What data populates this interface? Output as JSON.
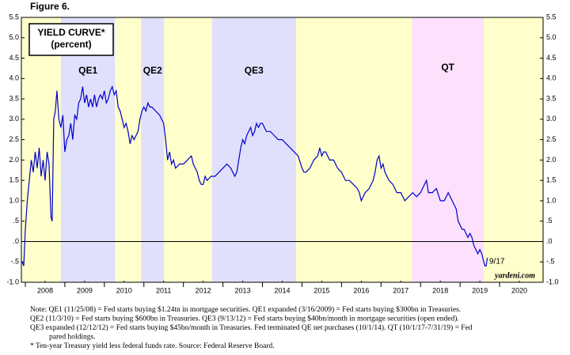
{
  "chart_data": {
    "type": "line",
    "figure_label": "Figure 6.",
    "title": "YIELD CURVE*",
    "subtitle": "(percent)",
    "color": "#0000cc",
    "background": "#ffffcc",
    "regions": [
      {
        "label": "QE1",
        "start": 2008.9,
        "end": 2010.27,
        "color": "#e0e0fc"
      },
      {
        "label": "QE2",
        "start": 2010.93,
        "end": 2011.51,
        "color": "#e0e0fc"
      },
      {
        "label": "QE3",
        "start": 2012.72,
        "end": 2014.85,
        "color": "#e0e0fc"
      },
      {
        "label": "QT",
        "start": 2017.78,
        "end": 2019.6,
        "color": "#fce0fc"
      }
    ],
    "x": [
      2007.92,
      2007.96,
      2008.0,
      2008.05,
      2008.1,
      2008.15,
      2008.2,
      2008.25,
      2008.3,
      2008.35,
      2008.4,
      2008.45,
      2008.5,
      2008.55,
      2008.6,
      2008.65,
      2008.68,
      2008.72,
      2008.76,
      2008.8,
      2008.85,
      2008.9,
      2008.95,
      2009.0,
      2009.05,
      2009.1,
      2009.15,
      2009.2,
      2009.25,
      2009.3,
      2009.35,
      2009.4,
      2009.45,
      2009.5,
      2009.55,
      2009.6,
      2009.65,
      2009.7,
      2009.75,
      2009.8,
      2009.85,
      2009.9,
      2009.95,
      2010.0,
      2010.05,
      2010.1,
      2010.15,
      2010.2,
      2010.25,
      2010.3,
      2010.35,
      2010.4,
      2010.45,
      2010.5,
      2010.55,
      2010.6,
      2010.65,
      2010.7,
      2010.75,
      2010.8,
      2010.85,
      2010.9,
      2010.95,
      2011.0,
      2011.05,
      2011.1,
      2011.15,
      2011.2,
      2011.3,
      2011.4,
      2011.5,
      2011.55,
      2011.6,
      2011.65,
      2011.7,
      2011.75,
      2011.8,
      2011.9,
      2012.0,
      2012.1,
      2012.2,
      2012.25,
      2012.3,
      2012.35,
      2012.4,
      2012.45,
      2012.5,
      2012.55,
      2012.6,
      2012.7,
      2012.8,
      2012.9,
      2013.0,
      2013.1,
      2013.2,
      2013.3,
      2013.35,
      2013.4,
      2013.45,
      2013.5,
      2013.55,
      2013.6,
      2013.65,
      2013.7,
      2013.75,
      2013.8,
      2013.85,
      2013.9,
      2013.95,
      2014.0,
      2014.05,
      2014.1,
      2014.2,
      2014.3,
      2014.4,
      2014.5,
      2014.6,
      2014.7,
      2014.8,
      2014.9,
      2015.0,
      2015.05,
      2015.1,
      2015.2,
      2015.3,
      2015.4,
      2015.45,
      2015.5,
      2015.55,
      2015.6,
      2015.7,
      2015.8,
      2015.9,
      2016.0,
      2016.1,
      2016.2,
      2016.3,
      2016.4,
      2016.45,
      2016.5,
      2016.55,
      2016.6,
      2016.7,
      2016.8,
      2016.85,
      2016.9,
      2016.95,
      2017.0,
      2017.05,
      2017.1,
      2017.2,
      2017.3,
      2017.4,
      2017.5,
      2017.6,
      2017.7,
      2017.8,
      2017.9,
      2018.0,
      2018.05,
      2018.1,
      2018.15,
      2018.2,
      2018.3,
      2018.4,
      2018.5,
      2018.6,
      2018.7,
      2018.8,
      2018.85,
      2018.9,
      2018.95,
      2019.0,
      2019.05,
      2019.1,
      2019.15,
      2019.2,
      2019.25,
      2019.3,
      2019.35,
      2019.4,
      2019.45,
      2019.5,
      2019.55,
      2019.6,
      2019.63,
      2019.66,
      2019.69
    ],
    "values": [
      -0.5,
      -0.6,
      0.3,
      1.0,
      1.5,
      2.0,
      1.7,
      2.2,
      1.8,
      2.3,
      1.6,
      2.0,
      1.5,
      2.2,
      1.9,
      0.6,
      0.5,
      3.0,
      3.2,
      3.7,
      3.0,
      2.8,
      3.1,
      2.2,
      2.5,
      2.6,
      2.9,
      2.5,
      3.1,
      3.0,
      3.4,
      3.5,
      3.8,
      3.4,
      3.6,
      3.3,
      3.5,
      3.3,
      3.6,
      3.3,
      3.5,
      3.6,
      3.5,
      3.7,
      3.4,
      3.5,
      3.7,
      3.8,
      3.6,
      3.7,
      3.3,
      3.2,
      3.0,
      2.8,
      2.9,
      2.7,
      2.4,
      2.6,
      2.5,
      2.6,
      2.7,
      3.0,
      3.2,
      3.3,
      3.2,
      3.4,
      3.3,
      3.3,
      3.2,
      3.1,
      2.9,
      2.5,
      2.0,
      2.2,
      1.9,
      2.0,
      1.8,
      1.9,
      1.9,
      2.0,
      2.1,
      1.9,
      1.8,
      1.7,
      1.5,
      1.4,
      1.4,
      1.6,
      1.5,
      1.6,
      1.6,
      1.7,
      1.8,
      1.9,
      1.8,
      1.6,
      1.7,
      2.0,
      2.3,
      2.5,
      2.4,
      2.6,
      2.7,
      2.8,
      2.6,
      2.7,
      2.9,
      2.8,
      2.9,
      2.9,
      2.8,
      2.7,
      2.7,
      2.6,
      2.5,
      2.5,
      2.4,
      2.3,
      2.2,
      2.1,
      1.8,
      1.7,
      1.7,
      1.8,
      2.0,
      2.1,
      2.3,
      2.1,
      2.2,
      2.2,
      2.0,
      2.0,
      1.8,
      1.7,
      1.5,
      1.5,
      1.4,
      1.3,
      1.2,
      1.0,
      1.1,
      1.2,
      1.3,
      1.5,
      1.7,
      2.0,
      2.1,
      1.8,
      1.9,
      1.7,
      1.5,
      1.4,
      1.2,
      1.2,
      1.0,
      1.1,
      1.2,
      1.1,
      1.2,
      1.3,
      1.4,
      1.5,
      1.2,
      1.2,
      1.3,
      1.0,
      1.0,
      1.2,
      1.0,
      0.9,
      0.8,
      0.5,
      0.4,
      0.3,
      0.3,
      0.2,
      0.1,
      0.2,
      0.1,
      -0.1,
      -0.2,
      -0.3,
      -0.2,
      -0.3,
      -0.5,
      -0.6,
      -0.6,
      -0.4
    ],
    "xlim": [
      2007.9,
      2021.1
    ],
    "ylim": [
      -1.0,
      5.5
    ],
    "xticks": [
      {
        "value": 2008.5,
        "label": "2008"
      },
      {
        "value": 2009.5,
        "label": "2009"
      },
      {
        "value": 2010.5,
        "label": "2010"
      },
      {
        "value": 2011.5,
        "label": "2011"
      },
      {
        "value": 2012.5,
        "label": "2012"
      },
      {
        "value": 2013.5,
        "label": "2013"
      },
      {
        "value": 2014.5,
        "label": "2014"
      },
      {
        "value": 2015.5,
        "label": "2015"
      },
      {
        "value": 2016.5,
        "label": "2016"
      },
      {
        "value": 2017.5,
        "label": "2017"
      },
      {
        "value": 2018.5,
        "label": "2018"
      },
      {
        "value": 2019.5,
        "label": "2019"
      },
      {
        "value": 2020.5,
        "label": "2020"
      }
    ],
    "yticks": [
      5.5,
      {
        "value": 5,
        "label": "5.0"
      },
      4.5,
      {
        "value": 4,
        "label": "4.0"
      },
      3.5,
      {
        "value": 3,
        "label": "3.0"
      },
      2.5,
      {
        "value": 2,
        "label": "2.0"
      },
      1.5,
      {
        "value": 1,
        "label": "1.0"
      },
      {
        "value": 0.5,
        "label": ".5"
      },
      {
        "value": 0,
        "label": ".0"
      },
      {
        "value": -0.5,
        "label": "-.5"
      },
      {
        "value": -1,
        "label": "-1.0"
      }
    ],
    "annotations": [
      "9/17",
      "yardeni.com"
    ],
    "notes": [
      "Note: QE1 (11/25/08) = Fed starts buying $1.24tn in mortgage securities. QE1 expanded (3/16/2009) = Fed starts buying $300bn in Treasuries.",
      "QE2 (11/3/10) = Fed starts buying $600bn in Treasuries. QE3 (9/13/12) = Fed starts buying $40bn/month in mortgage securities (open ended).",
      "QE3 expanded (12/12/12) = Fed starts buying $45bn/month in Treasuries. Fed terminated QE net purchases (10/1/14). QT (10/1/17-7/31/19) = Fed",
      "pared holdings.",
      "*   Ten-year Treasury yield less federal funds rate. Source: Federal Reserve Board."
    ]
  }
}
